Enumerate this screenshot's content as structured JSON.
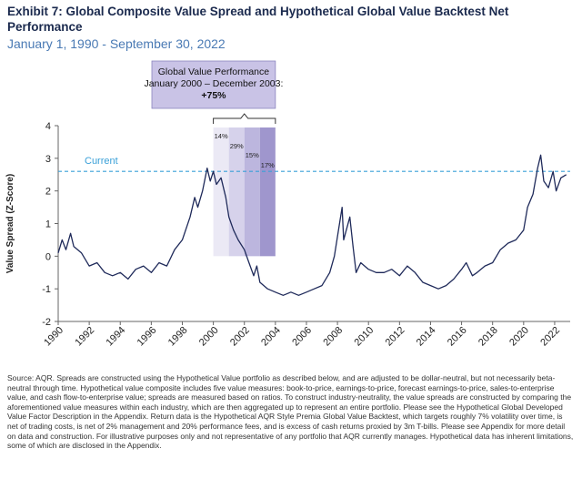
{
  "chart_data": {
    "type": "line",
    "title": "Exhibit 7: Global Composite Value Spread and Hypothetical Global Value Backtest Net Performance",
    "subtitle": "January 1, 1990 - September 30, 2022",
    "y_label": "Value Spread (Z-Score)",
    "xlim": [
      1990,
      2023
    ],
    "xticks": [
      1990,
      1992,
      1994,
      1996,
      1998,
      2000,
      2002,
      2004,
      2006,
      2008,
      2010,
      2012,
      2014,
      2016,
      2018,
      2020,
      2022
    ],
    "ylim": [
      -2,
      4
    ],
    "yticks": [
      -2,
      -1,
      0,
      1,
      2,
      3,
      4
    ],
    "current_value": 2.6,
    "current_label": "Current",
    "current_color": "#3aa0d8",
    "annotation": {
      "lines": [
        "Global Value Performance",
        "January 2000 – December 2003:",
        "+75%"
      ],
      "start": 2000,
      "end": 2004,
      "color": "#c9c3e6"
    },
    "shaded_periods": [
      {
        "start": 2000,
        "end": 2001,
        "label": "14%",
        "color": "#ebe9f5"
      },
      {
        "start": 2001,
        "end": 2002,
        "label": "29%",
        "color": "#d6d2eb"
      },
      {
        "start": 2002,
        "end": 2003,
        "label": "15%",
        "color": "#bcb6de"
      },
      {
        "start": 2003,
        "end": 2004,
        "label": "17%",
        "color": "#9f96cd"
      }
    ],
    "series": [
      {
        "color": "#1f2a5a",
        "x": [
          1990,
          1990.25,
          1990.5,
          1990.8,
          1991,
          1991.5,
          1992,
          1992.5,
          1993,
          1993.5,
          1994,
          1994.5,
          1995,
          1995.5,
          1996,
          1996.5,
          1997,
          1997.5,
          1998,
          1998.5,
          1998.8,
          1999,
          1999.3,
          1999.6,
          1999.8,
          2000,
          2000.2,
          2000.5,
          2000.8,
          2001,
          2001.3,
          2001.6,
          2002,
          2002.3,
          2002.6,
          2002.8,
          2003,
          2003.5,
          2004,
          2004.5,
          2005,
          2005.5,
          2006,
          2006.5,
          2007,
          2007.5,
          2007.8,
          2008,
          2008.3,
          2008.4,
          2008.8,
          2009,
          2009.2,
          2009.5,
          2010,
          2010.5,
          2011,
          2011.5,
          2012,
          2012.5,
          2013,
          2013.5,
          2014,
          2014.5,
          2015,
          2015.5,
          2016,
          2016.3,
          2016.7,
          2017,
          2017.5,
          2018,
          2018.5,
          2019,
          2019.5,
          2020,
          2020.25,
          2020.6,
          2020.9,
          2021.1,
          2021.3,
          2021.6,
          2021.9,
          2022.1,
          2022.4,
          2022.75
        ],
        "values": [
          0.1,
          0.5,
          0.2,
          0.7,
          0.3,
          0.1,
          -0.3,
          -0.2,
          -0.5,
          -0.6,
          -0.5,
          -0.7,
          -0.4,
          -0.3,
          -0.5,
          -0.2,
          -0.3,
          0.2,
          0.5,
          1.2,
          1.8,
          1.5,
          2.0,
          2.7,
          2.3,
          2.6,
          2.2,
          2.4,
          1.8,
          1.2,
          0.8,
          0.5,
          0.2,
          -0.2,
          -0.6,
          -0.3,
          -0.8,
          -1.0,
          -1.1,
          -1.2,
          -1.1,
          -1.2,
          -1.1,
          -1.0,
          -0.9,
          -0.5,
          0.0,
          0.6,
          1.5,
          0.5,
          1.2,
          0.3,
          -0.5,
          -0.2,
          -0.4,
          -0.5,
          -0.5,
          -0.4,
          -0.6,
          -0.3,
          -0.5,
          -0.8,
          -0.9,
          -1.0,
          -0.9,
          -0.7,
          -0.4,
          -0.2,
          -0.6,
          -0.5,
          -0.3,
          -0.2,
          0.2,
          0.4,
          0.5,
          0.8,
          1.5,
          1.9,
          2.7,
          3.1,
          2.3,
          2.1,
          2.6,
          2.0,
          2.4,
          2.5
        ]
      }
    ],
    "footnote": "Source: AQR. Spreads are constructed using the Hypothetical Value portfolio as described below, and are adjusted to be dollar-neutral, but not necessarily beta-neutral through time. Hypothetical value composite includes five value measures: book-to-price, earnings-to-price, forecast earnings-to-price, sales-to-enterprise value, and cash flow-to-enterprise value; spreads are measured based on ratios. To construct industry-neutrality, the value spreads are constructed by comparing the aforementioned value measures within each industry, which are then aggregated up to represent an entire portfolio. Please see the Hypothetical Global Developed Value Factor Description in the Appendix. Return data is the Hypothetical AQR Style Premia Global Value Backtest, which targets roughly 7% volatility over time, is net of trading costs, is net of 2% management and 20% performance fees, and is excess of cash returns proxied by 3m T-bills. Please see Appendix for more detail on data and construction. For illustrative purposes only and not representative of any portfolio that AQR currently manages. Hypothetical data has inherent limitations, some of which are disclosed in the Appendix."
  }
}
